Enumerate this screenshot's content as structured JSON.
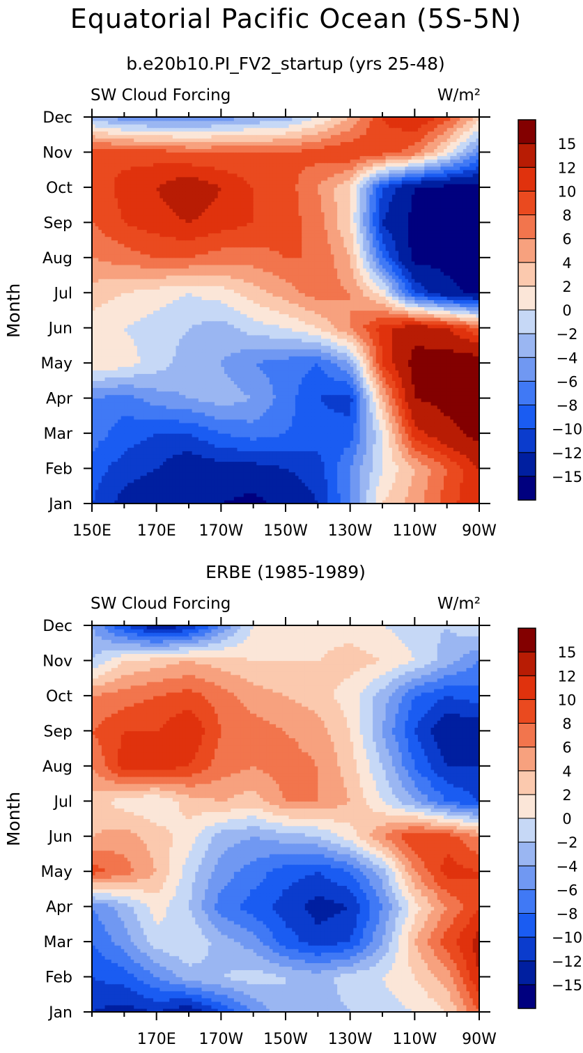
{
  "figure_title": "Equatorial Pacific Ocean (5S-5N)",
  "chart_data": [
    {
      "type": "heatmap",
      "title": "b.e20b10.PI_FV2_startup (yrs 25-48)",
      "left_label": "SW Cloud Forcing",
      "units": "W/m²",
      "ylabel": "Month",
      "xlabel": "",
      "x_tick_labels": [
        "150E",
        "170E",
        "170W",
        "150W",
        "130W",
        "110W",
        "90W"
      ],
      "x_tick_values": [
        150,
        170,
        190,
        210,
        230,
        250,
        270
      ],
      "x_range": [
        150,
        270
      ],
      "y_tick_labels": [
        "Jan",
        "Feb",
        "Mar",
        "Apr",
        "May",
        "Jun",
        "Jul",
        "Aug",
        "Sep",
        "Oct",
        "Nov",
        "Dec"
      ],
      "contour_levels": [
        -15,
        -12,
        -10,
        -8,
        -6,
        -4,
        -2,
        0,
        2,
        4,
        6,
        8,
        10,
        12,
        15
      ],
      "colorbar_labels": [
        "15",
        "12",
        "10",
        "8",
        "6",
        "4",
        "2",
        "0",
        "−2",
        "−4",
        "−6",
        "−8",
        "−10",
        "−12",
        "−15"
      ],
      "colors": [
        "#00007f",
        "#001fa0",
        "#0b3ccd",
        "#1a5cf2",
        "#4079f5",
        "#7098f2",
        "#9ab6f2",
        "#c6d8f6",
        "#fbe6d8",
        "#fbc9ae",
        "#f7a17e",
        "#f2754d",
        "#ea4a1f",
        "#e0320d",
        "#b81c04",
        "#830000"
      ],
      "x_grid": [
        150,
        160,
        170,
        180,
        190,
        200,
        210,
        220,
        230,
        240,
        250,
        260,
        270
      ],
      "values": [
        [
          -10,
          -13,
          -14,
          -14,
          -15,
          -16,
          -14,
          -12,
          -6,
          2,
          5,
          9,
          12
        ],
        [
          -9,
          -11,
          -12,
          -14,
          -13,
          -13,
          -12,
          -11,
          -6,
          0,
          4,
          8,
          12
        ],
        [
          -7,
          -9,
          -10,
          -10,
          -8,
          -7,
          -8,
          -9,
          -9,
          0,
          11,
          14,
          16
        ],
        [
          -6,
          -7,
          -5,
          -4,
          -3,
          -4,
          -7,
          -10,
          -11,
          4,
          15,
          16,
          16
        ],
        [
          2,
          1,
          -1,
          -3,
          -4,
          -6,
          -7,
          -8,
          -4,
          10,
          16,
          17,
          17
        ],
        [
          1,
          0,
          -1,
          -2,
          -3,
          -1,
          0,
          2,
          6,
          11,
          14,
          12,
          8
        ],
        [
          3,
          2,
          1,
          0,
          1,
          3,
          5,
          7,
          6,
          1,
          -10,
          -14,
          -16
        ],
        [
          6,
          7,
          8,
          8,
          7,
          7,
          8,
          8,
          4,
          -8,
          -16,
          -16,
          -16
        ],
        [
          8,
          10,
          11,
          12,
          11,
          10,
          9,
          7,
          2,
          -12,
          -16,
          -16,
          -16
        ],
        [
          8,
          11,
          12,
          14,
          12,
          10,
          9,
          6,
          2,
          -10,
          -15,
          -16,
          -16
        ],
        [
          10,
          9,
          9,
          8,
          8,
          8,
          8,
          9,
          10,
          9,
          7,
          1,
          -6
        ],
        [
          -3,
          -5,
          -6,
          -6,
          -5,
          -4,
          -3,
          0,
          4,
          10,
          12,
          9,
          3
        ]
      ]
    },
    {
      "type": "heatmap",
      "title": "ERBE (1985-1989)",
      "left_label": "SW Cloud Forcing",
      "units": "W/m²",
      "ylabel": "Month",
      "xlabel": "",
      "x_tick_labels": [
        "170E",
        "170W",
        "150W",
        "130W",
        "110W",
        "90W"
      ],
      "x_tick_values": [
        170,
        190,
        210,
        230,
        250,
        270
      ],
      "x_range": [
        150,
        270
      ],
      "y_tick_labels": [
        "Jan",
        "Feb",
        "Mar",
        "Apr",
        "May",
        "Jun",
        "Jul",
        "Aug",
        "Sep",
        "Oct",
        "Nov",
        "Dec"
      ],
      "contour_levels": [
        -15,
        -12,
        -10,
        -8,
        -6,
        -4,
        -2,
        0,
        2,
        4,
        6,
        8,
        10,
        12,
        15
      ],
      "colorbar_labels": [
        "15",
        "12",
        "10",
        "8",
        "6",
        "4",
        "2",
        "0",
        "−2",
        "−4",
        "−6",
        "−8",
        "−10",
        "−12",
        "−15"
      ],
      "colors": [
        "#00007f",
        "#001fa0",
        "#0b3ccd",
        "#1a5cf2",
        "#4079f5",
        "#7098f2",
        "#9ab6f2",
        "#c6d8f6",
        "#fbe6d8",
        "#fbc9ae",
        "#f7a17e",
        "#f2754d",
        "#ea4a1f",
        "#e0320d",
        "#b81c04",
        "#830000"
      ],
      "x_grid": [
        150,
        160,
        170,
        180,
        190,
        200,
        210,
        220,
        230,
        240,
        250,
        260,
        270
      ],
      "values": [
        [
          -12,
          -13,
          -12,
          -14,
          -10,
          -6,
          -2,
          -3,
          -2,
          -1,
          0,
          2,
          8
        ],
        [
          -10,
          -9,
          -6,
          -3,
          -2,
          -1,
          -2,
          -3,
          -1,
          0,
          2,
          5,
          12
        ],
        [
          -8,
          -5,
          -1,
          0,
          -3,
          -5,
          -9,
          -11,
          -10,
          -4,
          4,
          9,
          13
        ],
        [
          -6,
          -3,
          1,
          -2,
          -7,
          -9,
          -11,
          -13,
          -12,
          -6,
          1,
          6,
          10
        ],
        [
          9,
          7,
          4,
          -1,
          -5,
          -7,
          -9,
          -10,
          -8,
          -3,
          6,
          11,
          10
        ],
        [
          4,
          5,
          3,
          1,
          -3,
          -4,
          -3,
          -2,
          1,
          6,
          10,
          9,
          6
        ],
        [
          3,
          1,
          0,
          3,
          4,
          3,
          6,
          6,
          4,
          0,
          -4,
          -8,
          -10
        ],
        [
          6,
          11,
          11,
          10,
          7,
          6,
          7,
          6,
          3,
          -2,
          -8,
          -12,
          -12
        ],
        [
          8,
          10,
          10,
          12,
          8,
          7,
          6,
          5,
          2,
          -4,
          -10,
          -14,
          -14
        ],
        [
          6,
          7,
          8,
          9,
          7,
          5,
          4,
          3,
          1,
          -3,
          -8,
          -10,
          -9
        ],
        [
          -2,
          2,
          3,
          4,
          3,
          2,
          2,
          2,
          3,
          2,
          0,
          -3,
          -6
        ],
        [
          -4,
          -10,
          -14,
          -12,
          -6,
          0,
          1,
          1,
          1,
          0,
          -1,
          -2,
          0
        ]
      ]
    }
  ]
}
